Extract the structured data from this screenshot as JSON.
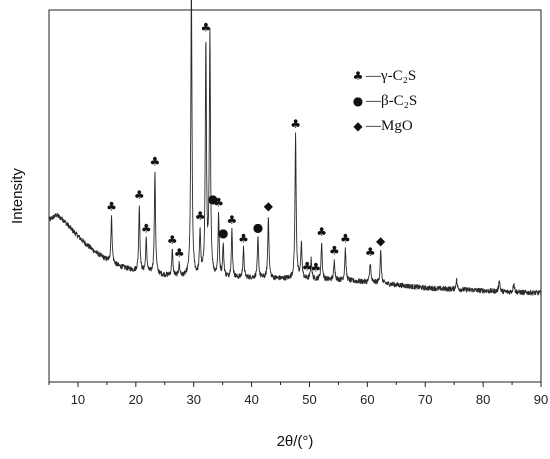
{
  "chart_data": {
    "type": "line",
    "xlabel": "2θ/(°)",
    "ylabel": "Intensity",
    "xlim": [
      5,
      90
    ],
    "x_ticks": [
      10,
      20,
      30,
      40,
      50,
      60,
      70,
      80,
      90
    ],
    "y_ticks_shown": false,
    "grid": false,
    "legend": {
      "placement": "top-right",
      "entries": [
        {
          "symbol": "♣",
          "symbol_name": "club-icon",
          "label": "—γ-C₂S"
        },
        {
          "symbol": "●",
          "symbol_name": "circle-icon",
          "label": "—β-C₂S"
        },
        {
          "symbol": "◆",
          "symbol_name": "diamond-icon",
          "label": "—MgO"
        }
      ]
    },
    "baseline_points": [
      [
        5,
        160
      ],
      [
        6.3,
        165
      ],
      [
        7.5,
        160
      ],
      [
        9,
        150
      ],
      [
        11,
        138
      ],
      [
        13,
        128
      ],
      [
        15,
        120
      ],
      [
        17,
        114
      ],
      [
        20,
        109
      ],
      [
        24,
        105
      ],
      [
        28,
        103
      ],
      [
        33,
        102
      ],
      [
        40,
        102
      ],
      [
        48,
        101
      ],
      [
        55,
        100
      ],
      [
        62,
        97
      ],
      [
        70,
        92
      ],
      [
        78,
        90
      ],
      [
        84,
        88
      ],
      [
        90,
        87
      ]
    ],
    "peaks": [
      {
        "x": 15.8,
        "h": 46,
        "phase": "γ-C₂S"
      },
      {
        "x": 20.6,
        "h": 66,
        "phase": "γ-C₂S"
      },
      {
        "x": 21.8,
        "h": 33,
        "phase": "γ-C₂S"
      },
      {
        "x": 23.3,
        "h": 102,
        "phase": "γ-C₂S"
      },
      {
        "x": 26.3,
        "h": 25,
        "phase": "γ-C₂S"
      },
      {
        "x": 27.5,
        "h": 12,
        "phase": "γ-C₂S"
      },
      {
        "x": 29.6,
        "h": 292,
        "phase": "γ-C₂S"
      },
      {
        "x": 31.1,
        "h": 45,
        "phase": "γ-C₂S"
      },
      {
        "x": 32.1,
        "h": 232,
        "phase": "γ-C₂S"
      },
      {
        "x": 32.8,
        "h": 240,
        "phase": "β-C₂S"
      },
      {
        "x": 34.3,
        "h": 62,
        "phase": "γ-C₂S"
      },
      {
        "x": 35.1,
        "h": 32,
        "phase": "β-C₂S"
      },
      {
        "x": 36.6,
        "h": 47,
        "phase": "γ-C₂S"
      },
      {
        "x": 38.6,
        "h": 29,
        "phase": "γ-C₂S"
      },
      {
        "x": 41.1,
        "h": 40,
        "phase": "β-C₂S"
      },
      {
        "x": 42.9,
        "h": 62,
        "phase": "MgO"
      },
      {
        "x": 47.6,
        "h": 144,
        "phase": "γ-C₂S"
      },
      {
        "x": 48.6,
        "h": 36,
        "phase": "γ-C₂S"
      },
      {
        "x": 50.3,
        "h": 20,
        "phase": "γ-C₂S"
      },
      {
        "x": 52.1,
        "h": 37,
        "phase": "γ-C₂S"
      },
      {
        "x": 54.3,
        "h": 19,
        "phase": "γ-C₂S"
      },
      {
        "x": 56.2,
        "h": 32,
        "phase": "γ-C₂S"
      },
      {
        "x": 60.5,
        "h": 20,
        "phase": "γ-C₂S"
      },
      {
        "x": 62.3,
        "h": 32,
        "phase": "MgO"
      },
      {
        "x": 75.4,
        "h": 10,
        "phase": null
      },
      {
        "x": 82.8,
        "h": 12,
        "phase": null
      },
      {
        "x": 85.3,
        "h": 10,
        "phase": null
      }
    ],
    "phase_markers": [
      {
        "x": 15.8,
        "phase": "γ-C₂S"
      },
      {
        "x": 20.6,
        "phase": "γ-C₂S"
      },
      {
        "x": 21.8,
        "phase": "γ-C₂S"
      },
      {
        "x": 23.3,
        "phase": "γ-C₂S"
      },
      {
        "x": 26.3,
        "phase": "γ-C₂S"
      },
      {
        "x": 27.5,
        "phase": "γ-C₂S"
      },
      {
        "x": 29.6,
        "phase": "γ-C₂S"
      },
      {
        "x": 31.1,
        "phase": "γ-C₂S"
      },
      {
        "x": 32.1,
        "phase": "γ-C₂S"
      },
      {
        "x": 33.3,
        "phase": "β-C₂S"
      },
      {
        "x": 34.3,
        "phase": "γ-C₂S"
      },
      {
        "x": 35.1,
        "phase": "β-C₂S"
      },
      {
        "x": 36.6,
        "phase": "γ-C₂S"
      },
      {
        "x": 38.6,
        "phase": "γ-C₂S"
      },
      {
        "x": 41.1,
        "phase": "β-C₂S"
      },
      {
        "x": 42.9,
        "phase": "MgO"
      },
      {
        "x": 47.6,
        "phase": "γ-C₂S"
      },
      {
        "x": 49.6,
        "phase": "γ-C₂S"
      },
      {
        "x": 51.1,
        "phase": "γ-C₂S"
      },
      {
        "x": 52.1,
        "phase": "γ-C₂S"
      },
      {
        "x": 54.3,
        "phase": "γ-C₂S"
      },
      {
        "x": 56.2,
        "phase": "γ-C₂S"
      },
      {
        "x": 60.5,
        "phase": "γ-C₂S"
      },
      {
        "x": 62.3,
        "phase": "MgO"
      }
    ]
  }
}
